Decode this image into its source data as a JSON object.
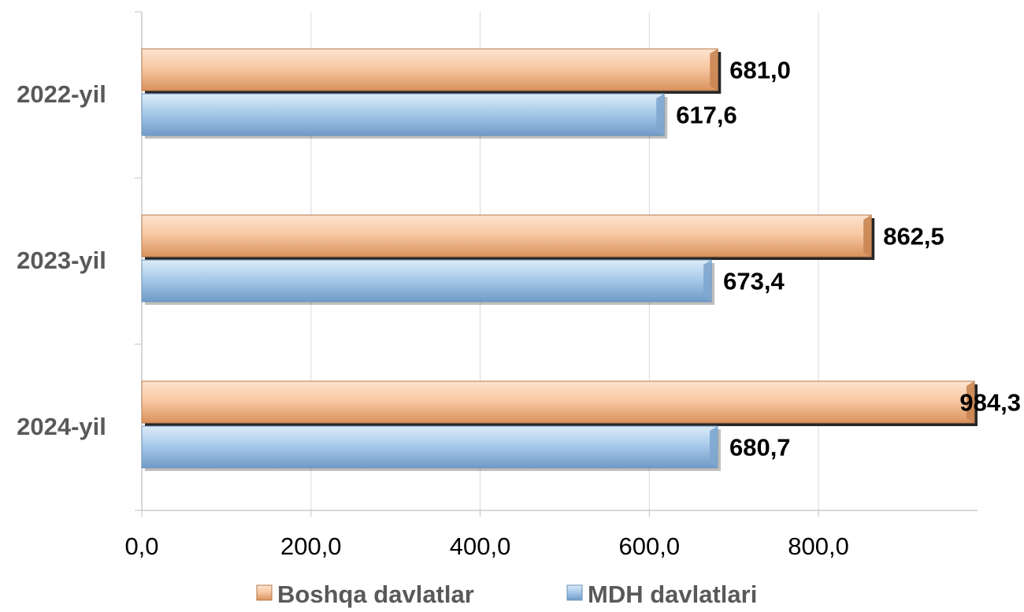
{
  "chart_data": {
    "type": "bar",
    "orientation": "horizontal",
    "categories": [
      "2022-yil",
      "2023-yil",
      "2024-yil"
    ],
    "series": [
      {
        "name": "Boshqa davlatlar",
        "values": [
          681.0,
          862.5,
          984.3
        ],
        "labels": [
          "681,0",
          "862,5",
          "984,3"
        ],
        "color": "#f4b183"
      },
      {
        "name": "MDH davlatlari",
        "values": [
          617.6,
          673.4,
          680.7
        ],
        "labels": [
          "617,6",
          "673,4",
          "680,7"
        ],
        "color": "#9dc3e6"
      }
    ],
    "xlim": [
      0,
      984.3
    ],
    "xticks": [
      0,
      200,
      400,
      600,
      800
    ],
    "xtick_labels": [
      "0,0",
      "200,0",
      "400,0",
      "600,0",
      "800,0"
    ],
    "grid": true,
    "legend_position": "bottom"
  }
}
